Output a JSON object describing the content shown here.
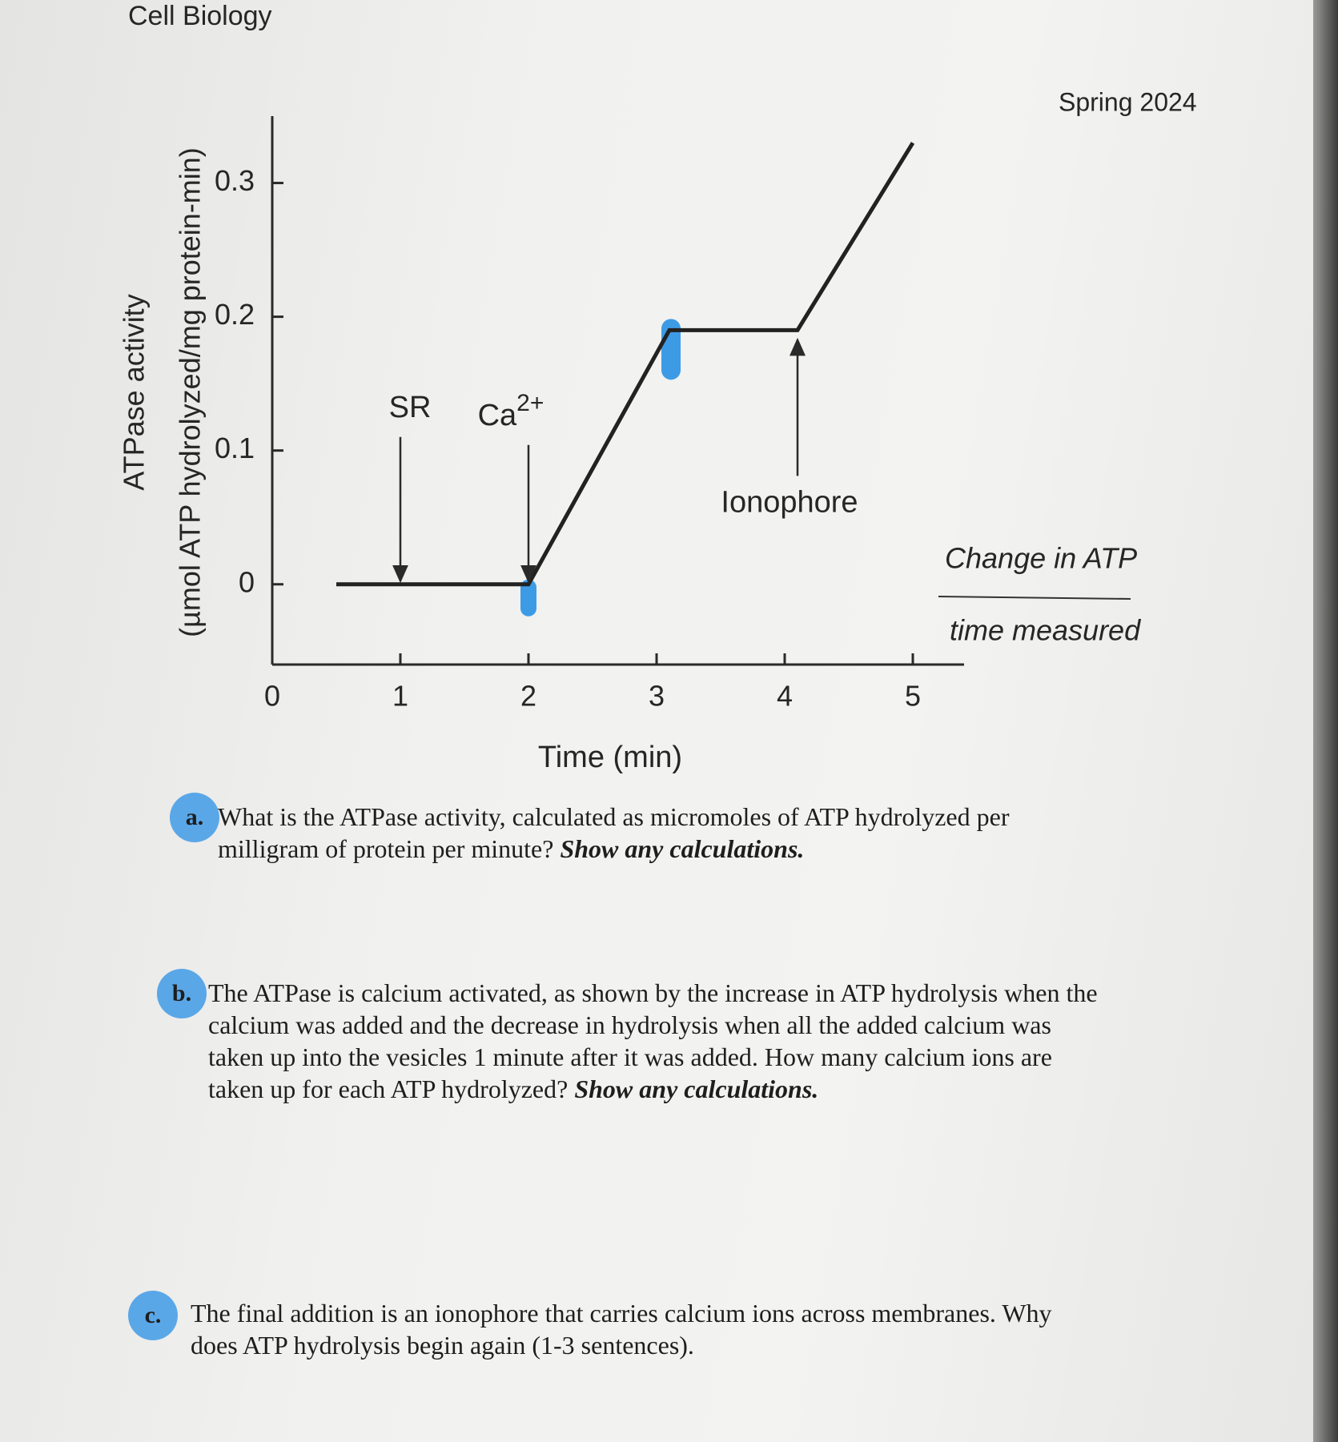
{
  "header": {
    "course": "Cell Biology",
    "term": "Spring 2024"
  },
  "chart_data": {
    "type": "line",
    "y_label_lines": [
      "ATPase activity",
      "(µmol ATP hydrolyzed/mg protein-min)"
    ],
    "x_label": "Time (min)",
    "x": [
      0.5,
      2,
      3.1,
      4.1,
      5
    ],
    "values": [
      0,
      0,
      0.19,
      0.19,
      0.33
    ],
    "color": "#222222",
    "xlim": [
      0,
      5.4
    ],
    "ylim": [
      -0.06,
      0.35
    ],
    "xticks": [
      0,
      1,
      2,
      3,
      4,
      5
    ],
    "yticks": [
      0,
      0.1,
      0.2,
      0.3
    ],
    "annotations": {
      "sr": "SR",
      "ca": {
        "base": "Ca",
        "sup": "2+"
      },
      "ionophore": "Ionophore"
    }
  },
  "note": {
    "numerator": "Change in ATP",
    "denominator": "time measured"
  },
  "questions": [
    {
      "label": "a.",
      "text": "What is the ATPase activity, calculated as micromoles of ATP hydrolyzed per milligram of protein per minute?",
      "emphasis": "Show any calculations."
    },
    {
      "label": "b.",
      "text": "The ATPase is calcium activated, as shown by the increase in ATP hydrolysis when the calcium was added and the decrease in hydrolysis when all the added calcium was taken up into the vesicles 1 minute after it was added. How many calcium ions are taken up for each ATP hydrolyzed?",
      "emphasis": "Show any calculations."
    },
    {
      "label": "c.",
      "text": "The final addition is an ionophore that carries calcium ions across membranes. Why does ATP hydrolysis begin again (1-3 sentences)."
    }
  ]
}
